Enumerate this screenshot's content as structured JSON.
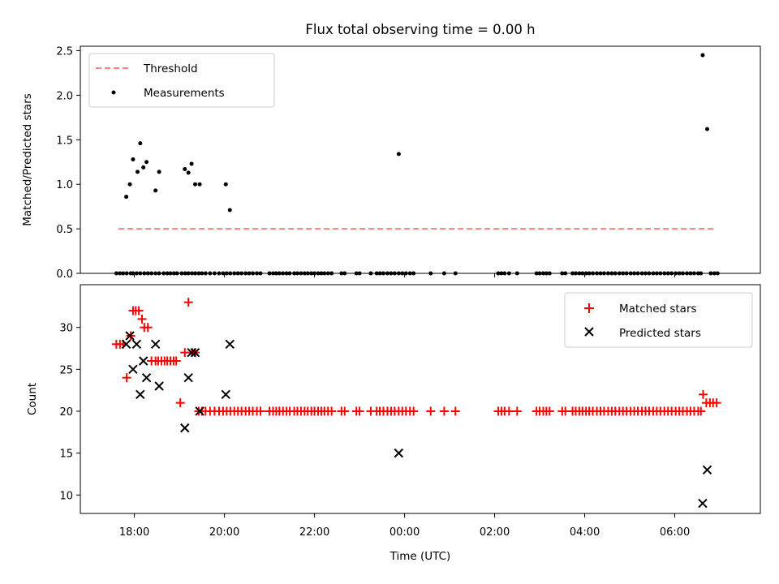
{
  "chart_data": [
    {
      "type": "line",
      "title": "Flux total observing time = 0.00 h",
      "xlabel": "",
      "ylabel": "Matched/Predicted stars",
      "ylim": [
        0,
        2.55
      ],
      "yticks": [
        0.0,
        0.5,
        1.0,
        1.5,
        2.0,
        2.5
      ],
      "ytick_labels": [
        "0.0",
        "0.5",
        "1.0",
        "1.5",
        "2.0",
        "2.5"
      ],
      "legend": {
        "placement": "top-left",
        "entries": [
          {
            "label": "Threshold",
            "style": "dashed-line",
            "color": "#ff7f7f"
          },
          {
            "label": "Measurements",
            "style": "dot",
            "color": "#000000"
          }
        ]
      },
      "series": [
        {
          "name": "Threshold",
          "kind": "line",
          "color": "#ff7f7f",
          "x": [
            17.65,
            6.93
          ],
          "y": [
            0.5,
            0.5
          ]
        },
        {
          "name": "Measurements",
          "kind": "scatter",
          "color": "#000000",
          "x": [
            17.6,
            17.68,
            17.75,
            17.83,
            17.92,
            17.97,
            18.05,
            18.13,
            18.22,
            18.3,
            18.38,
            18.47,
            18.55,
            18.65,
            18.73,
            18.8,
            18.88,
            18.95,
            19.05,
            19.13,
            19.2,
            19.28,
            19.35,
            19.43,
            19.5,
            19.58,
            19.68,
            19.78,
            19.88,
            19.97,
            20.05,
            20.13,
            20.22,
            20.3,
            20.38,
            20.47,
            20.55,
            20.63,
            20.72,
            20.8,
            21.0,
            21.08,
            21.15,
            21.22,
            21.3,
            21.38,
            21.45,
            21.55,
            21.62,
            21.7,
            21.78,
            21.85,
            21.93,
            22.0,
            22.08,
            22.15,
            22.22,
            22.3,
            22.38,
            22.6,
            22.67,
            22.93,
            23.0,
            23.25,
            23.38,
            23.45,
            23.53,
            23.62,
            23.7,
            23.78,
            23.87,
            23.95,
            0.03,
            0.12,
            0.2,
            0.58,
            0.88,
            1.13,
            2.08,
            2.15,
            2.22,
            2.32,
            2.5,
            2.93,
            3.0,
            3.08,
            3.15,
            3.22,
            3.5,
            3.57,
            3.73,
            3.8,
            3.88,
            3.95,
            4.03,
            4.1,
            4.18,
            4.27,
            4.35,
            4.43,
            4.52,
            4.6,
            4.68,
            4.77,
            4.85,
            4.93,
            5.02,
            5.1,
            5.18,
            5.27,
            5.35,
            5.43,
            5.52,
            5.6,
            5.68,
            5.77,
            5.85,
            5.93,
            6.02,
            6.1,
            6.18,
            6.27,
            6.35,
            6.43,
            6.52,
            6.58,
            6.8,
            6.88,
            6.95,
            17.82,
            17.9,
            17.97,
            18.07,
            18.13,
            18.2,
            18.27,
            18.47,
            18.55,
            19.12,
            19.2,
            19.27,
            19.35,
            19.45,
            20.03,
            20.12,
            23.87,
            6.62,
            6.72
          ],
          "y": [
            0,
            0,
            0,
            0,
            0,
            0,
            0,
            0,
            0,
            0,
            0,
            0,
            0,
            0,
            0,
            0,
            0,
            0,
            0,
            0,
            0,
            0,
            0,
            0,
            0,
            0,
            0,
            0,
            0,
            0,
            0,
            0,
            0,
            0,
            0,
            0,
            0,
            0,
            0,
            0,
            0,
            0,
            0,
            0,
            0,
            0,
            0,
            0,
            0,
            0,
            0,
            0,
            0,
            0,
            0,
            0,
            0,
            0,
            0,
            0,
            0,
            0,
            0,
            0,
            0,
            0,
            0,
            0,
            0,
            0,
            0,
            0,
            0,
            0,
            0,
            0,
            0,
            0,
            0,
            0,
            0,
            0,
            0,
            0,
            0,
            0,
            0,
            0,
            0,
            0,
            0,
            0,
            0,
            0,
            0,
            0,
            0,
            0,
            0,
            0,
            0,
            0,
            0,
            0,
            0,
            0,
            0,
            0,
            0,
            0,
            0,
            0,
            0,
            0,
            0,
            0,
            0,
            0,
            0,
            0,
            0,
            0,
            0,
            0,
            0,
            0,
            0,
            0,
            0,
            0.86,
            1.0,
            1.28,
            1.14,
            1.46,
            1.19,
            1.25,
            0.93,
            1.14,
            1.17,
            1.13,
            1.23,
            1.0,
            1.0,
            1.0,
            0.71,
            1.34,
            2.45,
            1.62
          ]
        }
      ]
    },
    {
      "type": "scatter",
      "title": "",
      "xlabel": "Time (UTC)",
      "ylabel": "Count",
      "ylim": [
        7.8,
        35.1
      ],
      "yticks": [
        10,
        15,
        20,
        25,
        30
      ],
      "ytick_labels": [
        "10",
        "15",
        "20",
        "25",
        "30"
      ],
      "xlim": [
        16.8,
        7.9
      ],
      "xticks": [
        18,
        20,
        22,
        0,
        2,
        4,
        6
      ],
      "xtick_labels": [
        "18:00",
        "20:00",
        "22:00",
        "00:00",
        "02:00",
        "04:00",
        "06:00"
      ],
      "legend": {
        "placement": "top-right",
        "entries": [
          {
            "label": "Matched stars",
            "style": "plus",
            "color": "#ff0000"
          },
          {
            "label": "Predicted stars",
            "style": "x",
            "color": "#000000"
          }
        ]
      },
      "series": [
        {
          "name": "Matched stars",
          "marker": "plus",
          "color": "#ff0000",
          "x": [
            17.6,
            17.68,
            17.75,
            17.83,
            17.92,
            17.97,
            18.03,
            18.1,
            18.17,
            18.22,
            18.3,
            18.38,
            18.47,
            18.53,
            18.6,
            18.67,
            18.73,
            18.8,
            18.87,
            18.93,
            19.02,
            19.12,
            19.2,
            19.28,
            19.35,
            19.43,
            19.5,
            19.58,
            19.68,
            19.78,
            19.88,
            19.97,
            20.05,
            20.13,
            20.22,
            20.3,
            20.38,
            20.47,
            20.55,
            20.63,
            20.72,
            20.8,
            21.0,
            21.08,
            21.15,
            21.22,
            21.3,
            21.38,
            21.45,
            21.55,
            21.62,
            21.7,
            21.78,
            21.85,
            21.93,
            22.0,
            22.08,
            22.15,
            22.22,
            22.3,
            22.38,
            22.6,
            22.67,
            22.93,
            23.0,
            23.25,
            23.38,
            23.45,
            23.53,
            23.62,
            23.7,
            23.78,
            23.87,
            23.95,
            0.03,
            0.12,
            0.2,
            0.58,
            0.88,
            1.13,
            2.08,
            2.15,
            2.22,
            2.32,
            2.5,
            2.93,
            3.0,
            3.08,
            3.15,
            3.22,
            3.5,
            3.57,
            3.73,
            3.8,
            3.88,
            3.95,
            4.03,
            4.1,
            4.18,
            4.27,
            4.35,
            4.43,
            4.52,
            4.6,
            4.68,
            4.77,
            4.85,
            4.93,
            5.02,
            5.1,
            5.18,
            5.27,
            5.35,
            5.43,
            5.52,
            5.6,
            5.68,
            5.77,
            5.85,
            5.93,
            6.02,
            6.1,
            6.18,
            6.27,
            6.35,
            6.43,
            6.52,
            6.58,
            6.63,
            6.7,
            6.78,
            6.85,
            6.93
          ],
          "y": [
            28,
            28,
            28,
            24,
            29,
            32,
            32,
            32,
            31,
            30,
            30,
            26,
            26,
            26,
            26,
            26,
            26,
            26,
            26,
            26,
            21,
            27,
            33,
            27,
            27,
            20,
            20,
            20,
            20,
            20,
            20,
            20,
            20,
            20,
            20,
            20,
            20,
            20,
            20,
            20,
            20,
            20,
            20,
            20,
            20,
            20,
            20,
            20,
            20,
            20,
            20,
            20,
            20,
            20,
            20,
            20,
            20,
            20,
            20,
            20,
            20,
            20,
            20,
            20,
            20,
            20,
            20,
            20,
            20,
            20,
            20,
            20,
            20,
            20,
            20,
            20,
            20,
            20,
            20,
            20,
            20,
            20,
            20,
            20,
            20,
            20,
            20,
            20,
            20,
            20,
            20,
            20,
            20,
            20,
            20,
            20,
            20,
            20,
            20,
            20,
            20,
            20,
            20,
            20,
            20,
            20,
            20,
            20,
            20,
            20,
            20,
            20,
            20,
            20,
            20,
            20,
            20,
            20,
            20,
            20,
            20,
            20,
            20,
            20,
            20,
            20,
            20,
            20,
            22,
            21,
            21,
            21,
            21
          ]
        },
        {
          "name": "Predicted stars",
          "marker": "x",
          "color": "#000000",
          "x": [
            17.82,
            17.9,
            17.97,
            18.05,
            18.13,
            18.2,
            18.27,
            18.47,
            18.55,
            19.12,
            19.2,
            19.27,
            19.35,
            19.45,
            20.03,
            20.12,
            23.87,
            6.62,
            6.72
          ],
          "y": [
            28,
            29,
            25,
            28,
            22,
            26,
            24,
            28,
            23,
            18,
            24,
            27,
            27,
            20,
            22,
            28,
            15,
            9,
            13
          ]
        }
      ]
    }
  ]
}
